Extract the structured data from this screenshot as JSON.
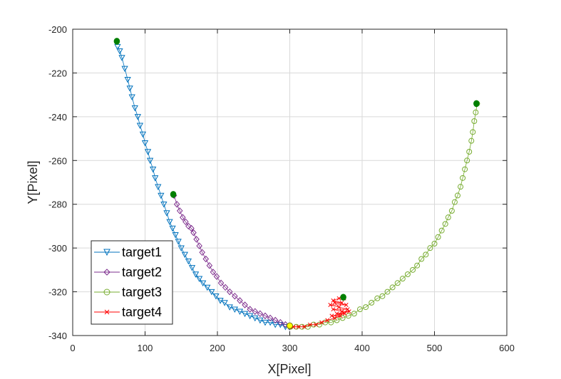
{
  "chart_data": {
    "type": "line",
    "title": "",
    "xlabel": "X[Pixel]",
    "ylabel": "Y[Pixel]",
    "xlim": [
      0,
      600
    ],
    "ylim": [
      -340,
      -200
    ],
    "xticks": [
      0,
      100,
      200,
      300,
      400,
      500,
      600
    ],
    "yticks": [
      -200,
      -220,
      -240,
      -260,
      -280,
      -300,
      -320,
      -340
    ],
    "xtick_labels": [
      "0",
      "100",
      "200",
      "300",
      "400",
      "500",
      "600"
    ],
    "ytick_labels": [
      "-200",
      "-220",
      "-240",
      "-260",
      "-280",
      "-300",
      "-320",
      "-340"
    ],
    "grid": true,
    "legend_position": "bottom-left",
    "series": [
      {
        "name": "target1",
        "color": "#0072BD",
        "marker": "triangle-down",
        "points": [
          [
            62,
            -208
          ],
          [
            65,
            -210
          ],
          [
            68,
            -213
          ],
          [
            72,
            -218
          ],
          [
            76,
            -223
          ],
          [
            79,
            -227
          ],
          [
            82,
            -231
          ],
          [
            86,
            -236
          ],
          [
            90,
            -240
          ],
          [
            93,
            -244
          ],
          [
            97,
            -248
          ],
          [
            100,
            -252
          ],
          [
            104,
            -256
          ],
          [
            107,
            -260
          ],
          [
            111,
            -264
          ],
          [
            114,
            -268
          ],
          [
            118,
            -272
          ],
          [
            122,
            -276
          ],
          [
            126,
            -280
          ],
          [
            130,
            -284
          ],
          [
            134,
            -288
          ],
          [
            138,
            -291
          ],
          [
            142,
            -294
          ],
          [
            146,
            -297
          ],
          [
            150,
            -300
          ],
          [
            155,
            -303
          ],
          [
            160,
            -306
          ],
          [
            165,
            -309
          ],
          [
            170,
            -312
          ],
          [
            175,
            -314
          ],
          [
            180,
            -316
          ],
          [
            186,
            -318
          ],
          [
            192,
            -320
          ],
          [
            198,
            -322
          ],
          [
            204,
            -324
          ],
          [
            210,
            -325
          ],
          [
            217,
            -327
          ],
          [
            224,
            -328
          ],
          [
            231,
            -329
          ],
          [
            238,
            -330
          ],
          [
            245,
            -331
          ],
          [
            252,
            -332
          ],
          [
            259,
            -333
          ],
          [
            266,
            -334
          ],
          [
            273,
            -334
          ],
          [
            280,
            -335
          ],
          [
            287,
            -335
          ],
          [
            294,
            -336
          ],
          [
            299,
            -336
          ]
        ]
      },
      {
        "name": "target2",
        "color": "#7E2F8E",
        "marker": "diamond",
        "points": [
          [
            140,
            -276
          ],
          [
            144,
            -280
          ],
          [
            148,
            -283
          ],
          [
            152,
            -286
          ],
          [
            156,
            -288
          ],
          [
            160,
            -290
          ],
          [
            164,
            -291
          ],
          [
            167,
            -293
          ],
          [
            171,
            -296
          ],
          [
            175,
            -299
          ],
          [
            179,
            -302
          ],
          [
            184,
            -305
          ],
          [
            189,
            -308
          ],
          [
            194,
            -311
          ],
          [
            199,
            -313
          ],
          [
            205,
            -316
          ],
          [
            211,
            -318
          ],
          [
            217,
            -320
          ],
          [
            224,
            -322
          ],
          [
            231,
            -324
          ],
          [
            238,
            -326
          ],
          [
            245,
            -328
          ],
          [
            252,
            -329
          ],
          [
            259,
            -330
          ],
          [
            266,
            -331
          ],
          [
            273,
            -332
          ],
          [
            280,
            -333
          ],
          [
            287,
            -334
          ],
          [
            294,
            -335
          ],
          [
            300,
            -336
          ]
        ]
      },
      {
        "name": "target3",
        "color": "#77AC30",
        "marker": "circle",
        "points": [
          [
            559,
            -234
          ],
          [
            557,
            -238
          ],
          [
            555,
            -242
          ],
          [
            553,
            -247
          ],
          [
            551,
            -251
          ],
          [
            548,
            -256
          ],
          [
            545,
            -260
          ],
          [
            542,
            -264
          ],
          [
            539,
            -268
          ],
          [
            536,
            -272
          ],
          [
            532,
            -276
          ],
          [
            528,
            -279
          ],
          [
            524,
            -283
          ],
          [
            519,
            -286
          ],
          [
            515,
            -289
          ],
          [
            510,
            -292
          ],
          [
            505,
            -295
          ],
          [
            500,
            -298
          ],
          [
            494,
            -300
          ],
          [
            488,
            -303
          ],
          [
            482,
            -305
          ],
          [
            476,
            -308
          ],
          [
            470,
            -310
          ],
          [
            463,
            -312
          ],
          [
            456,
            -314
          ],
          [
            449,
            -316
          ],
          [
            442,
            -318
          ],
          [
            435,
            -320
          ],
          [
            428,
            -322
          ],
          [
            421,
            -323
          ],
          [
            413,
            -325
          ],
          [
            405,
            -327
          ],
          [
            397,
            -328
          ],
          [
            389,
            -330
          ],
          [
            381,
            -331
          ],
          [
            373,
            -332
          ],
          [
            365,
            -333
          ],
          [
            357,
            -334
          ],
          [
            349,
            -334
          ],
          [
            341,
            -335
          ],
          [
            333,
            -335
          ],
          [
            325,
            -336
          ],
          [
            317,
            -336
          ],
          [
            309,
            -336
          ],
          [
            301,
            -336
          ]
        ]
      },
      {
        "name": "target4",
        "color": "#FF0000",
        "marker": "x",
        "points": [
          [
            375,
            -323
          ],
          [
            368,
            -323
          ],
          [
            360,
            -324
          ],
          [
            372,
            -325
          ],
          [
            362,
            -325
          ],
          [
            378,
            -326
          ],
          [
            356,
            -326
          ],
          [
            368,
            -327
          ],
          [
            380,
            -328
          ],
          [
            360,
            -328
          ],
          [
            372,
            -329
          ],
          [
            382,
            -329
          ],
          [
            365,
            -330
          ],
          [
            376,
            -330
          ],
          [
            358,
            -331
          ],
          [
            370,
            -331
          ],
          [
            362,
            -332
          ],
          [
            352,
            -333
          ],
          [
            344,
            -334
          ],
          [
            336,
            -335
          ],
          [
            328,
            -335
          ],
          [
            320,
            -336
          ],
          [
            312,
            -336
          ],
          [
            305,
            -336
          ],
          [
            300,
            -336
          ]
        ]
      }
    ],
    "start_markers": {
      "color": "#007F00",
      "points": [
        [
          61,
          -205.5
        ],
        [
          139,
          -275.5
        ],
        [
          558,
          -234
        ],
        [
          374,
          -322.5
        ]
      ]
    },
    "end_marker": {
      "color": "#FFFF00",
      "point": [
        300,
        -335.5
      ]
    }
  }
}
